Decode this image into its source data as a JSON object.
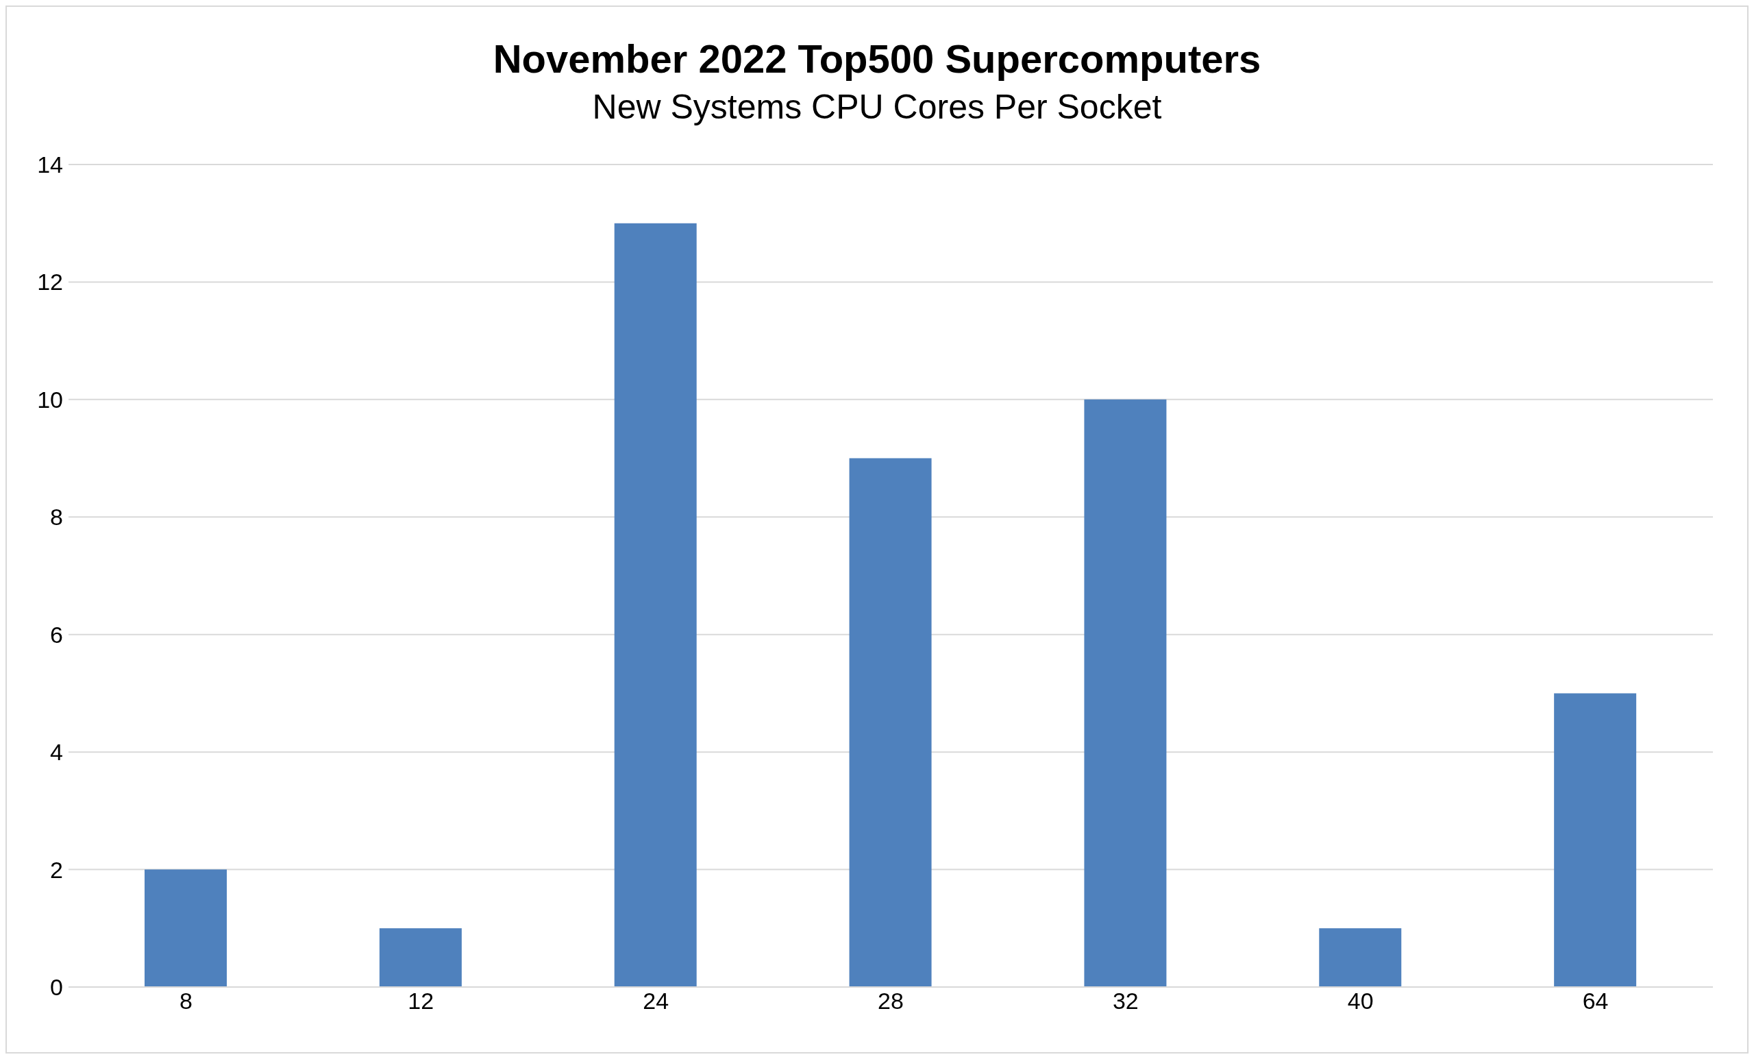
{
  "chart_data": {
    "type": "bar",
    "title": "November 2022 Top500 Supercomputers",
    "subtitle": "New Systems CPU Cores Per Socket",
    "categories": [
      "8",
      "12",
      "24",
      "28",
      "32",
      "40",
      "64"
    ],
    "values": [
      2,
      1,
      13,
      9,
      10,
      1,
      5
    ],
    "color": "#4f81bd",
    "ylim": [
      0,
      14
    ],
    "yticks": [
      0,
      2,
      4,
      6,
      8,
      10,
      12,
      14
    ],
    "grid": "y"
  }
}
